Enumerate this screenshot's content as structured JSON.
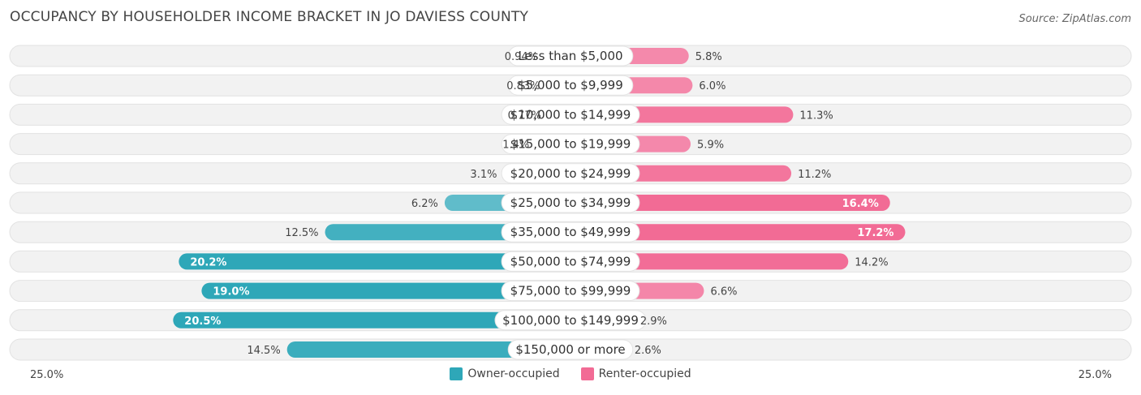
{
  "title": "OCCUPANCY BY HOUSEHOLDER INCOME BRACKET IN JO DAVIESS COUNTY",
  "source": "Source: ZipAtlas.com",
  "colors": {
    "owner": "#2ea7b8",
    "owner_light": "#8dd0da",
    "renter": "#f26b95",
    "renter_light": "#f7a8c2",
    "track": "#f1f1f1"
  },
  "chart_data": {
    "type": "bar",
    "orientation": "horizontal-diverging",
    "categories": [
      "Less than $5,000",
      "$5,000 to $9,999",
      "$10,000 to $14,999",
      "$15,000 to $19,999",
      "$20,000 to $24,999",
      "$25,000 to $34,999",
      "$35,000 to $49,999",
      "$50,000 to $74,999",
      "$75,000 to $99,999",
      "$100,000 to $149,999",
      "$150,000 or more"
    ],
    "series": [
      {
        "name": "Owner-occupied",
        "values": [
          0.94,
          0.83,
          0.77,
          1.4,
          3.1,
          6.2,
          12.5,
          20.2,
          19.0,
          20.5,
          14.5
        ],
        "labels": [
          "0.94%",
          "0.83%",
          "0.77%",
          "1.4%",
          "3.1%",
          "6.2%",
          "12.5%",
          "20.2%",
          "19.0%",
          "20.5%",
          "14.5%"
        ]
      },
      {
        "name": "Renter-occupied",
        "values": [
          5.8,
          6.0,
          11.3,
          5.9,
          11.2,
          16.4,
          17.2,
          14.2,
          6.6,
          2.9,
          2.6
        ],
        "labels": [
          "5.8%",
          "6.0%",
          "11.3%",
          "5.9%",
          "11.2%",
          "16.4%",
          "17.2%",
          "14.2%",
          "6.6%",
          "2.9%",
          "2.6%"
        ]
      }
    ],
    "xlim": [
      -25,
      25
    ],
    "axis_left_label": "25.0%",
    "axis_right_label": "25.0%",
    "legend_position": "bottom-center"
  }
}
